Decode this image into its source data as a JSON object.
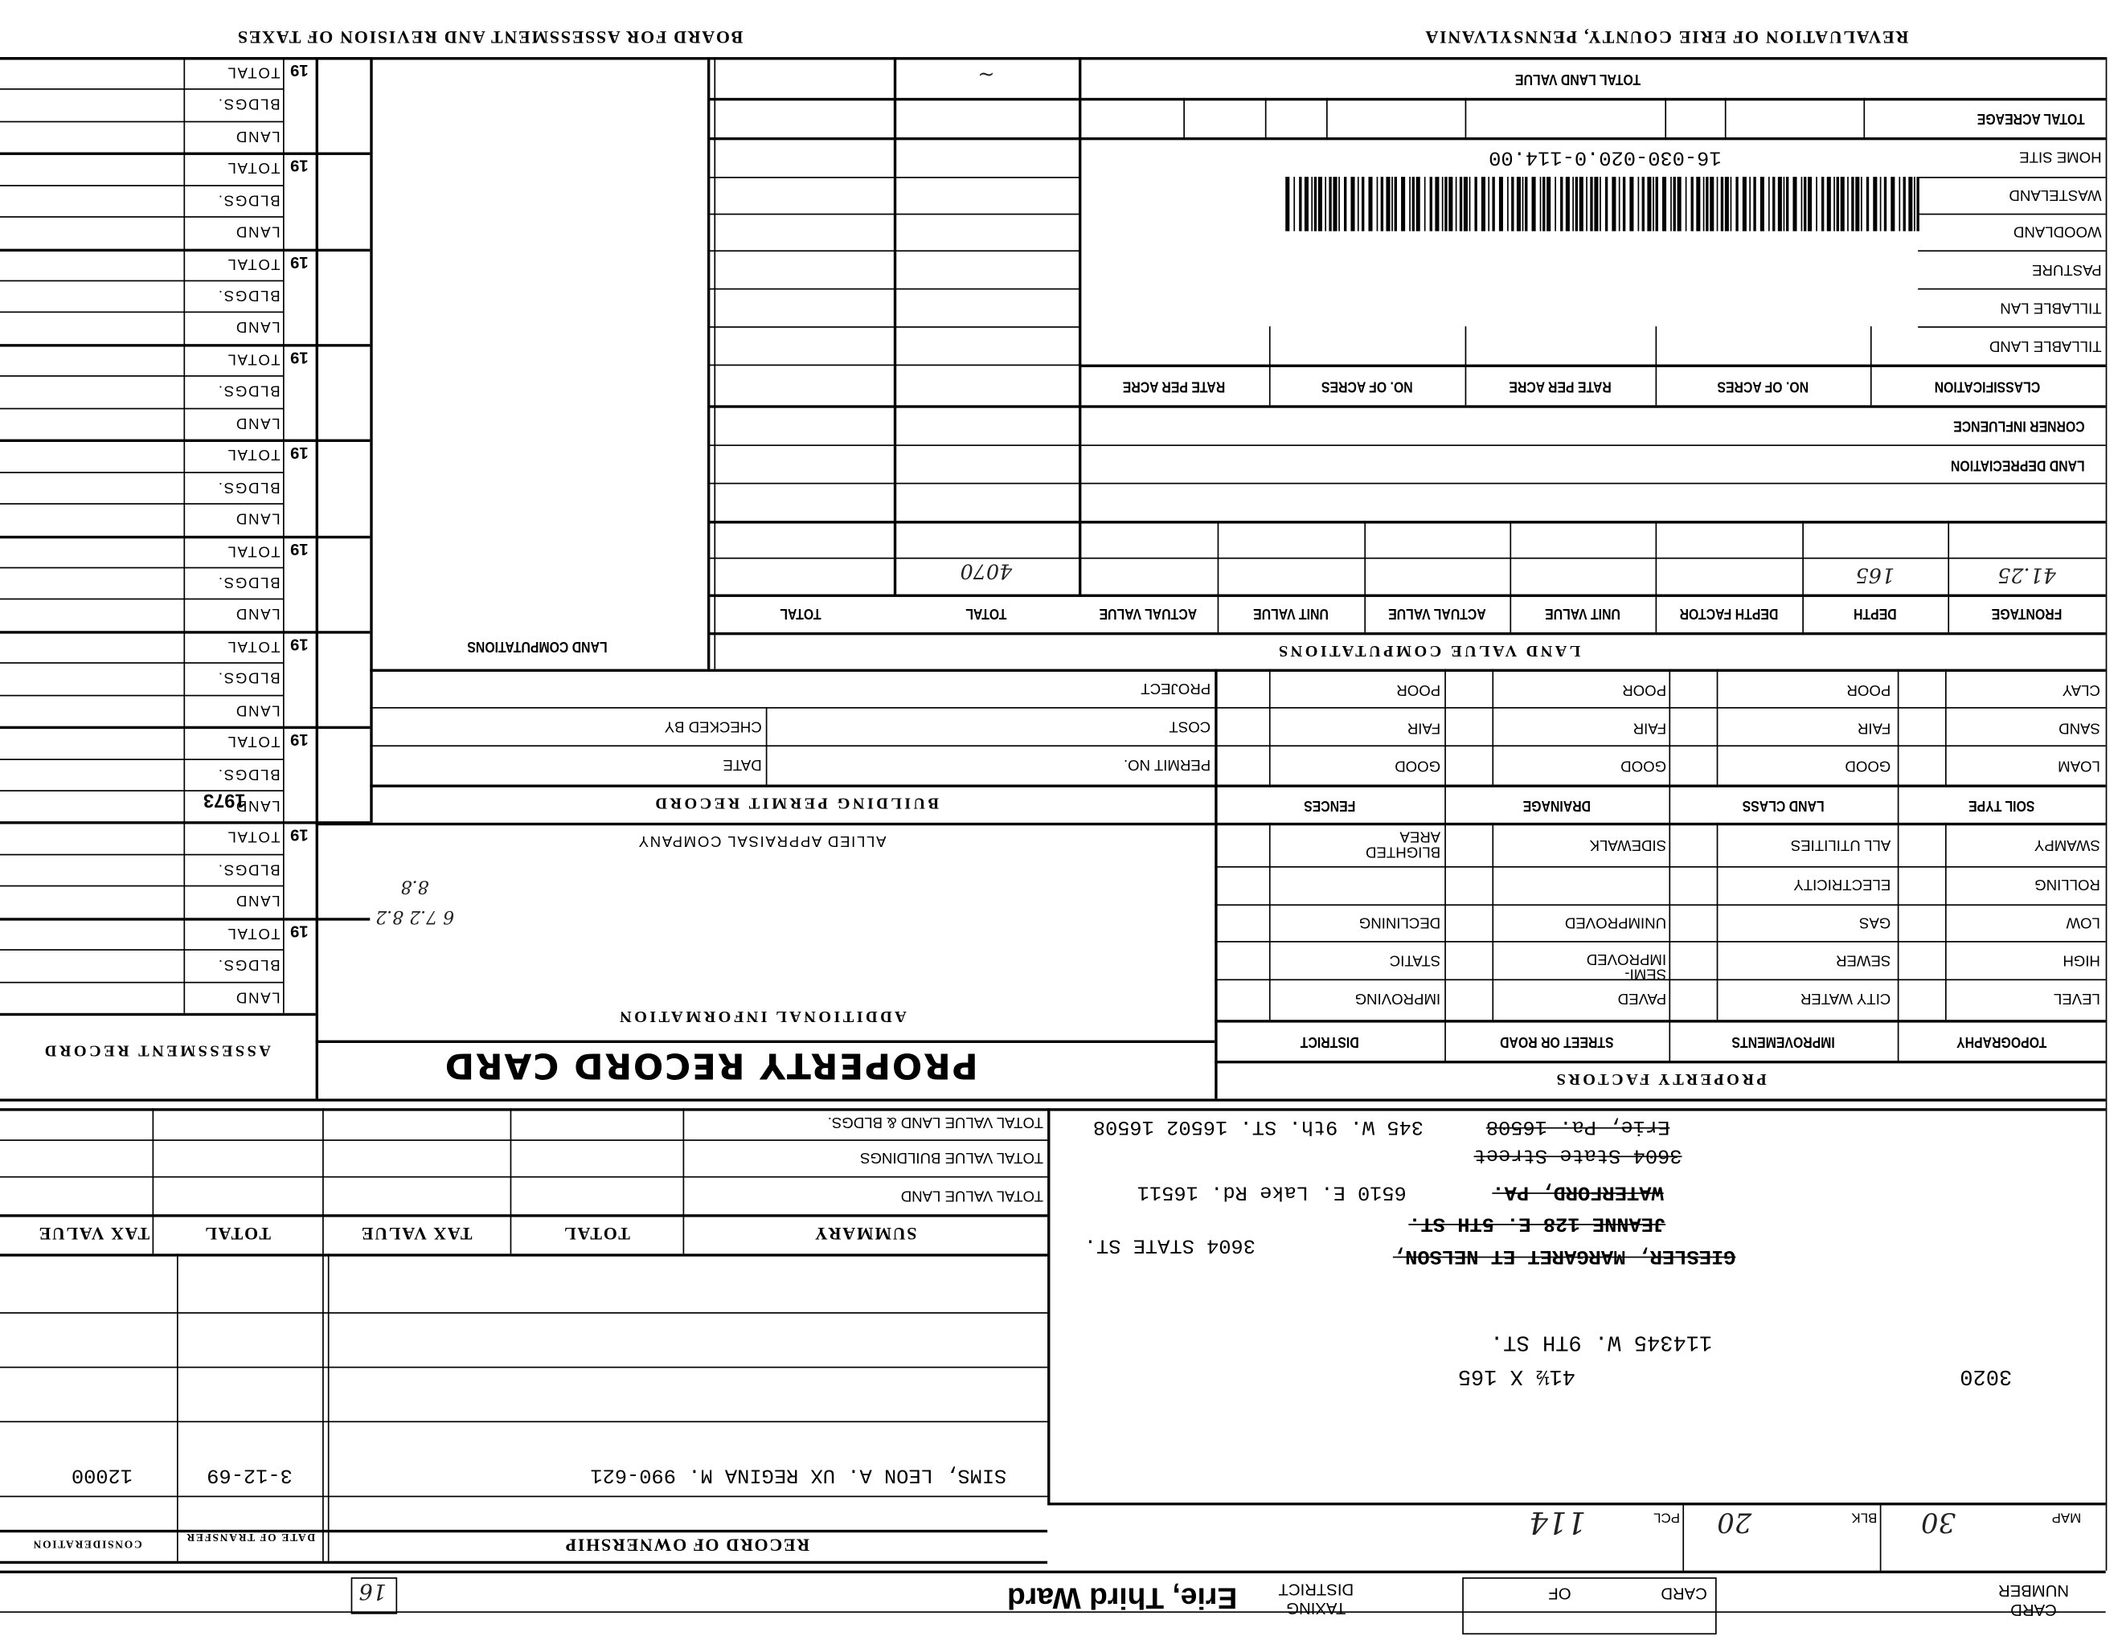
{
  "header": {
    "board_title": "BOARD FOR ASSESSMENT AND REVISION OF TAXES",
    "county_title": "REVALUATION OF ERIE COUNTY, PENNSYLVANIA"
  },
  "land_classification": {
    "total_land_value": "TOTAL LAND VALUE",
    "total_acreage": "TOTAL ACREAGE",
    "parcel_id": "16-030-020.0-114.00",
    "rows": [
      "HOME SITE",
      "WASTELAND",
      "WOODLAND",
      "PASTURE",
      "TILLABLE LAN",
      "TILLABLE LAND"
    ],
    "classification": "CLASSIFICATION",
    "no_of_acres": "NO. OF ACRES",
    "rate_per_acre": "RATE PER ACRE",
    "corner_influence": "CORNER INFLUENCE",
    "land_depreciation": "LAND DEPRECIATION"
  },
  "land_value_computations": {
    "title": "LAND VALUE COMPUTATIONS",
    "headers": [
      "FRONTAGE",
      "DEPTH",
      "DEPTH FACTOR",
      "UNIT VALUE",
      "ACTUAL VALUE",
      "UNIT VALUE",
      "ACTUAL VALUE",
      "TOTAL",
      "TOTAL"
    ],
    "entries": {
      "frontage": "41.25",
      "depth": "165",
      "total": "4070"
    }
  },
  "land_computations": {
    "title": "LAND COMPUTATIONS"
  },
  "property_factors": {
    "title": "PROPERTY FACTORS",
    "soil": {
      "header": "SOIL TYPE",
      "items": [
        "LOAM",
        "SAND",
        "CLAY"
      ]
    },
    "land_class": {
      "header": "LAND CLASS",
      "items": [
        "GOOD",
        "FAIR",
        "POOR"
      ]
    },
    "drainage": {
      "header": "DRAINAGE",
      "items": [
        "GOOD",
        "FAIR",
        "POOR"
      ]
    },
    "fences": {
      "header": "FENCES",
      "items": [
        "GOOD",
        "FAIR",
        "POOR"
      ]
    },
    "topography": {
      "header": "TOPOGRAPHY",
      "items": [
        "LEVEL",
        "HIGH",
        "LOW",
        "ROLLING",
        "SWAMPY"
      ]
    },
    "improvements": {
      "header": "IMPROVEMENTS",
      "items": [
        "CITY WATER",
        "SEWER",
        "GAS",
        "ELECTRICITY",
        "ALL UTILITIES"
      ]
    },
    "street": {
      "header": "STREET OR ROAD",
      "items": [
        "PAVED",
        "SEMI-IMPROVED",
        "UNIMPROVED",
        "",
        "SIDEWALK"
      ]
    },
    "district": {
      "header": "DISTRICT",
      "items": [
        "IMPROVING",
        "STATIC",
        "DECLINING",
        "",
        "BLIGHTED AREA"
      ]
    }
  },
  "building_permit": {
    "title": "BUILDING PERMIT RECORD",
    "permit_no": "PERMIT NO.",
    "date": "DATE",
    "cost": "COST",
    "checked_by": "CHECKED BY",
    "project": "PROJECT"
  },
  "additional_info": {
    "company": "ALLIED APPRAISAL COMPANY",
    "title": "ADDITIONAL INFORMATION"
  },
  "card_title": "PROPERTY RECORD CARD",
  "assessment_record": {
    "title": "ASSESSMENT RECORD",
    "year_prefix": "19",
    "row_labels": [
      "TOTAL",
      "BLDGS.",
      "LAND"
    ],
    "year_entry": "1973"
  },
  "summary": {
    "header": "SUMMARY",
    "total": "TOTAL",
    "tax_value": "TAX VALUE",
    "rows": [
      "TOTAL VALUE LAND",
      "TOTAL VALUE BUILDINGS",
      "TOTAL VALUE LAND & BLDGS."
    ]
  },
  "ownership": {
    "title": "RECORD OF OWNERSHIP",
    "date_of_transfer": "DATE OF TRANSFER",
    "consideration": "CONSIDERATION",
    "owner": "SIMS, LEON A. UX REGINA M. 990-621",
    "transfer_date": "3-12-69",
    "consideration_value": "12000"
  },
  "property": {
    "map_code": "3020",
    "parcel": "114",
    "address": "345 W. 9TH ST.",
    "dimensions": "41½ X 165",
    "prior_owner": "GIESLER, MARGARET ET NELSON,",
    "prior_owner_addr": "3604 STATE ST.",
    "prior_owner_2": "JEANNE 128 E. 5TH ST.",
    "city_line_1": "WATERFORD, PA.",
    "addr_line_lake": "6510 E. Lake Rd.   16511",
    "addr_line_state": "3604 State Street",
    "addr_line_erie": "Erie, Pa. 16508",
    "addr_line_9th": "345 W. 9th. ST.  16502  16508"
  },
  "footer": {
    "map_label": "MAP",
    "map_value": "30",
    "blk_label": "BLK",
    "blk_value": "20",
    "pcl_label": "PCL",
    "pcl_value": "114",
    "card_number": "CARD NUMBER",
    "card_of_card": "CARD",
    "card_of_of": "OF",
    "taxing_district_label": "TAXING DISTRICT",
    "taxing_district": "Erie, Third Ward",
    "stamp": "16"
  }
}
